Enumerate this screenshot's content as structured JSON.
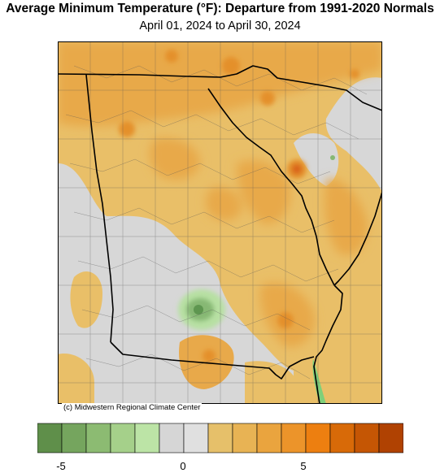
{
  "title": "Average Minimum Temperature (°F): Departure from 1991-2020 Normals",
  "subtitle": "April 01, 2024 to April 30, 2024",
  "credit": "(c) Midwestern Regional Climate Center",
  "legend": {
    "colors": [
      "#5f8f4a",
      "#75a55e",
      "#8cbb72",
      "#a5d08a",
      "#bce4a6",
      "#d6d6d6",
      "#e0e0e0",
      "#e6c06a",
      "#e8b354",
      "#eaa43e",
      "#ec942a",
      "#ed7f10",
      "#d86a08",
      "#c55604",
      "#b04202"
    ],
    "tick_labels": [
      "-5",
      "0",
      "5"
    ],
    "tick_values": [
      -5,
      0,
      5
    ]
  },
  "map_colors": {
    "gray": "#d7d7d7",
    "light_orange": "#e9bf68",
    "orange": "#e8a94a",
    "dark_orange": "#e4902c",
    "hot": "#d9641a",
    "light_green": "#b7e0a3",
    "green": "#86b873",
    "dark_green": "#5e9650",
    "ocean_green": "#7fd07a",
    "boundary": "#000000",
    "county": "#555555"
  }
}
